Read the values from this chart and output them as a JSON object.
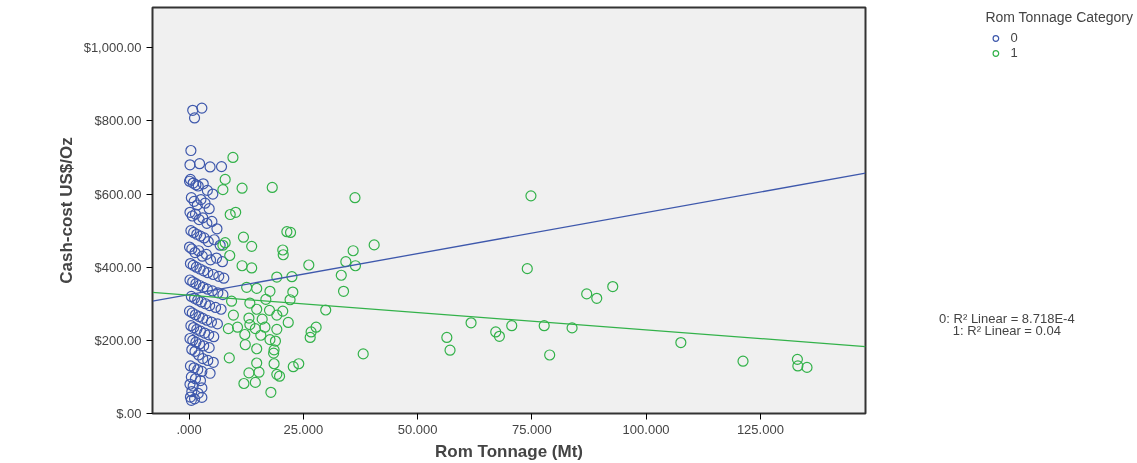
{
  "chart_data": {
    "type": "scatter",
    "xlabel": "Rom Tonnage (Mt)",
    "ylabel": "Cash-cost US$/Oz",
    "legend_title": "Rom Tonnage Category",
    "xlim": [
      -8,
      148
    ],
    "ylim": [
      0,
      1110
    ],
    "xticks": [
      {
        "value": 0,
        "label": ".000"
      },
      {
        "value": 25,
        "label": "25.000"
      },
      {
        "value": 50,
        "label": "50.000"
      },
      {
        "value": 75,
        "label": "75.000"
      },
      {
        "value": 100,
        "label": "100.000"
      },
      {
        "value": 125,
        "label": "125.000"
      }
    ],
    "yticks": [
      {
        "value": 0,
        "label": "$.00"
      },
      {
        "value": 200,
        "label": "$200.00"
      },
      {
        "value": 400,
        "label": "$400.00"
      },
      {
        "value": 600,
        "label": "$600.00"
      },
      {
        "value": 800,
        "label": "$800.00"
      },
      {
        "value": 1000,
        "label": "$1,000.00"
      }
    ],
    "marker": "circle",
    "grid": false,
    "legend": "top right",
    "annotations": [
      "0: R² Linear = 8.718E-4",
      "1: R² Linear = 0.04"
    ],
    "series": [
      {
        "name": "0",
        "color": "#3e58ac",
        "x": [
          0.8,
          2.8,
          1.2,
          0.4,
          0.2,
          2.3,
          4.6,
          7.1,
          0.3,
          0.9,
          1.5,
          0.1,
          2.0,
          3.1,
          4.0,
          5.2,
          0.5,
          1.1,
          1.8,
          2.6,
          3.5,
          4.4,
          0.2,
          0.7,
          1.4,
          2.2,
          3.0,
          3.9,
          5.0,
          6.1,
          0.4,
          1.0,
          1.7,
          2.5,
          3.3,
          4.2,
          5.5,
          6.8,
          0.1,
          0.6,
          1.3,
          2.1,
          2.9,
          3.8,
          4.7,
          6.0,
          7.3,
          0.3,
          0.9,
          1.6,
          2.4,
          3.2,
          4.1,
          5.3,
          6.5,
          7.6,
          0.2,
          0.8,
          1.5,
          2.3,
          3.1,
          4.0,
          5.1,
          6.3,
          7.4,
          0.5,
          1.2,
          1.9,
          2.7,
          3.6,
          4.5,
          5.8,
          7.0,
          0.1,
          0.7,
          1.4,
          2.2,
          3.0,
          3.9,
          4.9,
          6.2,
          0.4,
          1.0,
          1.7,
          2.5,
          3.4,
          4.3,
          5.4,
          0.2,
          0.8,
          1.5,
          2.3,
          3.2,
          4.4,
          0.6,
          1.3,
          2.1,
          3.0,
          4.1,
          5.3,
          0.3,
          1.1,
          1.9,
          2.8,
          4.6,
          0.5,
          1.4,
          2.5,
          0.2,
          0.9,
          2.8,
          0.6,
          2.0,
          0.3,
          1.2,
          0.5,
          2.8
        ],
        "values": [
          829,
          835,
          808,
          719,
          680,
          683,
          674,
          675,
          640,
          630,
          625,
          635,
          622,
          628,
          610,
          600,
          590,
          580,
          570,
          585,
          575,
          560,
          550,
          540,
          545,
          530,
          535,
          520,
          525,
          505,
          500,
          495,
          490,
          485,
          480,
          470,
          475,
          460,
          455,
          450,
          440,
          445,
          430,
          435,
          420,
          425,
          415,
          410,
          405,
          400,
          395,
          390,
          385,
          380,
          375,
          370,
          365,
          360,
          355,
          350,
          345,
          340,
          335,
          330,
          325,
          320,
          315,
          310,
          305,
          300,
          295,
          290,
          285,
          280,
          275,
          270,
          265,
          260,
          255,
          250,
          245,
          240,
          235,
          230,
          225,
          220,
          215,
          210,
          205,
          200,
          195,
          190,
          185,
          180,
          175,
          170,
          160,
          150,
          145,
          140,
          130,
          125,
          120,
          115,
          110,
          100,
          95,
          90,
          80,
          75,
          70,
          60,
          55,
          45,
          40,
          36,
          44
        ]
      },
      {
        "name": "1",
        "color": "#33b24a",
        "x": [
          9.6,
          7.9,
          7.4,
          11.6,
          18.2,
          36.3,
          10.2,
          9.0,
          21.4,
          22.2,
          40.5,
          35.9,
          7.4,
          11.9,
          13.7,
          20.5,
          20.6,
          7.9,
          8.9,
          26.2,
          34.3,
          36.4,
          33.3,
          33.8,
          29.9,
          38.1,
          11.6,
          13.7,
          19.2,
          22.5,
          12.6,
          14.8,
          17.7,
          22.7,
          22.1,
          16.8,
          13.3,
          9.3,
          14.8,
          17.6,
          20.5,
          9.7,
          13.1,
          16.0,
          19.2,
          21.7,
          13.3,
          16.6,
          8.6,
          10.6,
          14.5,
          19.2,
          27.8,
          26.7,
          12.2,
          15.7,
          17.7,
          18.9,
          26.5,
          12.3,
          14.8,
          18.6,
          18.5,
          8.8,
          18.6,
          14.8,
          24.0,
          22.8,
          13.1,
          15.3,
          19.2,
          19.8,
          12.0,
          14.5,
          17.9,
          74.8,
          74.0,
          87.0,
          89.2,
          92.7,
          61.7,
          56.4,
          57.1,
          67.1,
          67.9,
          70.6,
          77.7,
          83.8,
          78.9,
          107.6,
          121.2,
          133.1,
          133.2,
          135.2
        ],
        "values": [
          700,
          640,
          612,
          616,
          618,
          590,
          550,
          544,
          497,
          495,
          461,
          445,
          460,
          482,
          457,
          447,
          434,
          467,
          432,
          406,
          415,
          404,
          378,
          334,
          283,
          163,
          404,
          398,
          373,
          374,
          345,
          342,
          334,
          332,
          311,
          312,
          302,
          307,
          285,
          282,
          280,
          269,
          261,
          258,
          269,
          249,
          243,
          236,
          232,
          236,
          232,
          230,
          236,
          223,
          216,
          214,
          202,
          198,
          208,
          188,
          177,
          174,
          165,
          152,
          136,
          138,
          136,
          128,
          111,
          113,
          107,
          102,
          82,
          85,
          58,
          595,
          396,
          327,
          315,
          347,
          248,
          208,
          173,
          223,
          211,
          240,
          240,
          234,
          160,
          194,
          143,
          148,
          130,
          126
        ]
      },
      {
        "color": "#3e58ac",
        "type": "line",
        "marker": "none",
        "x": [
          -8,
          148
        ],
        "values": [
          307,
          657
        ]
      },
      {
        "color": "#33b24a",
        "type": "line",
        "marker": "none",
        "x": [
          -8,
          148
        ],
        "values": [
          331,
          183
        ]
      }
    ]
  }
}
